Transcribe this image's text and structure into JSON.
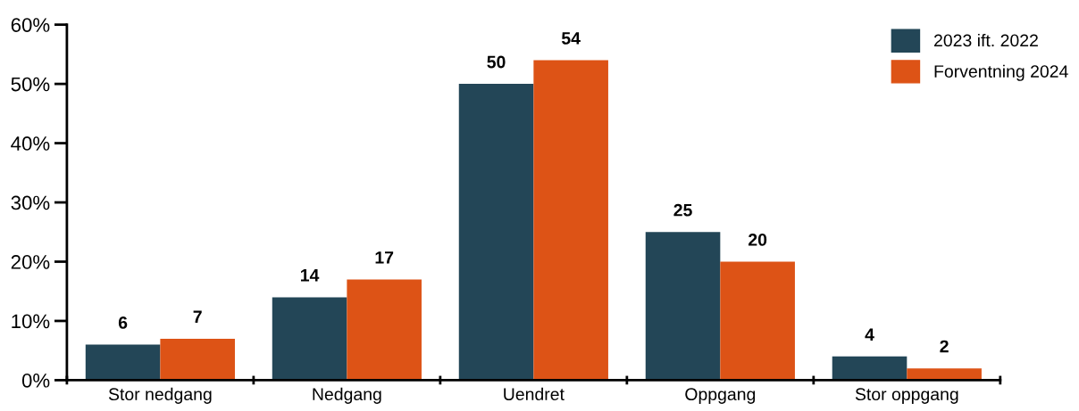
{
  "chart_data": {
    "type": "bar",
    "categories": [
      "Stor nedgang",
      "Nedgang",
      "Uendret",
      "Oppgang",
      "Stor oppgang"
    ],
    "series": [
      {
        "name": "2023 ift. 2022",
        "color": "#234657",
        "values": [
          6,
          14,
          50,
          25,
          4
        ]
      },
      {
        "name": "Forventning 2024",
        "color": "#dd5316",
        "values": [
          7,
          17,
          54,
          20,
          2
        ]
      }
    ],
    "ylim": [
      0,
      60
    ],
    "yticks": [
      {
        "value": 0,
        "label": "0%"
      },
      {
        "value": 10,
        "label": "10%"
      },
      {
        "value": 20,
        "label": "20%"
      },
      {
        "value": 30,
        "label": "30%"
      },
      {
        "value": 40,
        "label": "40%"
      },
      {
        "value": 50,
        "label": "50%"
      },
      {
        "value": 60,
        "label": "60%"
      }
    ],
    "data_labels": true,
    "legend": "top right",
    "grid": false
  }
}
